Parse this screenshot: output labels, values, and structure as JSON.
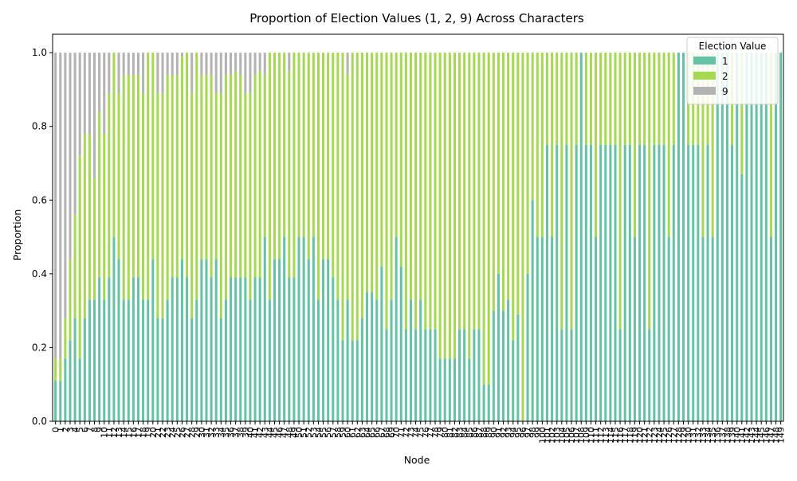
{
  "chart_data": {
    "type": "bar",
    "stacked": true,
    "title": "Proportion of Election Values (1, 2, 9) Across Characters",
    "xlabel": "Node",
    "ylabel": "Proportion",
    "ylim": [
      0,
      1.05
    ],
    "yticks": [
      "0.0",
      "0.2",
      "0.4",
      "0.6",
      "0.8",
      "1.0"
    ],
    "ytick_values": [
      0,
      0.2,
      0.4,
      0.6,
      0.8,
      1.0
    ],
    "grid": false,
    "legend": {
      "title": "Election Value",
      "placement": "top-right",
      "entries": [
        "1",
        "2",
        "9"
      ]
    },
    "colors": {
      "1": "#66c2a5",
      "2": "#a6d854",
      "9": "#b3b3b3"
    },
    "categories": [
      "0",
      "1",
      "2",
      "3",
      "4",
      "5",
      "6",
      "7",
      "8",
      "9",
      "10",
      "11",
      "12",
      "13",
      "14",
      "15",
      "16",
      "17",
      "18",
      "19",
      "20",
      "21",
      "22",
      "23",
      "24",
      "25",
      "26",
      "27",
      "28",
      "29",
      "30",
      "31",
      "32",
      "33",
      "34",
      "35",
      "36",
      "37",
      "38",
      "39",
      "40",
      "41",
      "42",
      "43",
      "44",
      "45",
      "46",
      "47",
      "48",
      "49",
      "50",
      "51",
      "52",
      "53",
      "54",
      "55",
      "56",
      "57",
      "58",
      "59",
      "60",
      "61",
      "62",
      "63",
      "64",
      "65",
      "66",
      "67",
      "68",
      "69",
      "70",
      "71",
      "72",
      "73",
      "74",
      "75",
      "76",
      "77",
      "78",
      "79",
      "80",
      "81",
      "82",
      "83",
      "84",
      "85",
      "86",
      "87",
      "88",
      "89",
      "90",
      "91",
      "92",
      "93",
      "94",
      "95",
      "96",
      "97",
      "98",
      "99",
      "100",
      "101",
      "102",
      "103",
      "104",
      "105",
      "106",
      "107",
      "108",
      "109",
      "110",
      "111",
      "112",
      "113",
      "114",
      "115",
      "116",
      "117",
      "118",
      "119",
      "120",
      "121",
      "122",
      "123",
      "124",
      "125",
      "126",
      "127",
      "128",
      "129",
      "130",
      "131",
      "132",
      "133",
      "134",
      "135",
      "136",
      "137",
      "138",
      "139",
      "140",
      "141",
      "142",
      "143",
      "144",
      "145",
      "146",
      "147",
      "148",
      "149"
    ],
    "series": [
      {
        "name": "1",
        "values": [
          0.11,
          0.11,
          0.17,
          0.22,
          0.28,
          0.17,
          0.28,
          0.33,
          0.33,
          0.39,
          0.33,
          0.39,
          0.5,
          0.44,
          0.33,
          0.33,
          0.39,
          0.39,
          0.33,
          0.33,
          0.44,
          0.28,
          0.28,
          0.33,
          0.39,
          0.39,
          0.44,
          0.39,
          0.28,
          0.33,
          0.44,
          0.44,
          0.39,
          0.44,
          0.28,
          0.33,
          0.39,
          0.39,
          0.39,
          0.39,
          0.33,
          0.39,
          0.39,
          0.5,
          0.33,
          0.44,
          0.44,
          0.5,
          0.39,
          0.39,
          0.5,
          0.5,
          0.44,
          0.5,
          0.33,
          0.44,
          0.44,
          0.39,
          0.33,
          0.22,
          0.33,
          0.22,
          0.22,
          0.28,
          0.35,
          0.35,
          0.33,
          0.42,
          0.25,
          0.33,
          0.5,
          0.42,
          0.25,
          0.33,
          0.25,
          0.33,
          0.25,
          0.25,
          0.25,
          0.17,
          0.17,
          0.17,
          0.17,
          0.25,
          0.25,
          0.17,
          0.25,
          0.25,
          0.1,
          0.1,
          0.3,
          0.4,
          0.3,
          0.33,
          0.22,
          0.29,
          0.0,
          0.4,
          0.6,
          0.5,
          0.5,
          0.75,
          0.5,
          0.75,
          0.25,
          0.75,
          0.25,
          0.75,
          1.0,
          0.75,
          0.75,
          0.5,
          0.75,
          0.75,
          0.75,
          0.75,
          0.25,
          0.75,
          0.75,
          0.5,
          0.75,
          0.75,
          0.25,
          0.75,
          0.75,
          0.75,
          0.5,
          0.75,
          1.0,
          1.0,
          0.75,
          0.75,
          0.75,
          0.5,
          0.75,
          0.5,
          1.0,
          1.0,
          1.0,
          0.75,
          1.0,
          0.67,
          1.0,
          1.0,
          1.0,
          1.0,
          1.0,
          0.5,
          1.0,
          1.0
        ]
      },
      {
        "name": "2",
        "values": [
          0.06,
          0.06,
          0.11,
          0.22,
          0.28,
          0.55,
          0.5,
          0.45,
          0.33,
          0.45,
          0.45,
          0.5,
          0.5,
          0.45,
          0.61,
          0.61,
          0.55,
          0.55,
          0.56,
          0.67,
          0.56,
          0.61,
          0.61,
          0.61,
          0.55,
          0.55,
          0.55,
          0.61,
          0.61,
          0.67,
          0.5,
          0.5,
          0.55,
          0.45,
          0.61,
          0.61,
          0.55,
          0.56,
          0.55,
          0.5,
          0.56,
          0.55,
          0.56,
          0.44,
          0.67,
          0.56,
          0.56,
          0.5,
          0.56,
          0.61,
          0.5,
          0.5,
          0.56,
          0.5,
          0.67,
          0.56,
          0.56,
          0.61,
          0.67,
          0.78,
          0.61,
          0.78,
          0.78,
          0.72,
          0.65,
          0.65,
          0.67,
          0.58,
          0.75,
          0.67,
          0.5,
          0.58,
          0.75,
          0.67,
          0.75,
          0.67,
          0.75,
          0.75,
          0.75,
          0.83,
          0.83,
          0.83,
          0.83,
          0.75,
          0.75,
          0.83,
          0.75,
          0.75,
          0.9,
          0.9,
          0.7,
          0.6,
          0.7,
          0.67,
          0.78,
          0.71,
          1.0,
          0.6,
          0.4,
          0.5,
          0.5,
          0.25,
          0.5,
          0.25,
          0.75,
          0.25,
          0.75,
          0.25,
          0.0,
          0.25,
          0.25,
          0.5,
          0.25,
          0.25,
          0.25,
          0.25,
          0.75,
          0.25,
          0.25,
          0.5,
          0.25,
          0.25,
          0.75,
          0.25,
          0.25,
          0.25,
          0.5,
          0.25,
          0.0,
          0.0,
          0.25,
          0.25,
          0.25,
          0.5,
          0.25,
          0.5,
          0.0,
          0.0,
          0.0,
          0.25,
          0.0,
          0.33,
          0.0,
          0.0,
          0.0,
          0.0,
          0.0,
          0.5,
          0.0,
          0.0
        ]
      },
      {
        "name": "9",
        "values": [
          0.83,
          0.83,
          0.72,
          0.56,
          0.44,
          0.28,
          0.22,
          0.22,
          0.34,
          0.16,
          0.22,
          0.11,
          0.0,
          0.11,
          0.06,
          0.06,
          0.06,
          0.06,
          0.11,
          0.0,
          0.0,
          0.11,
          0.11,
          0.06,
          0.06,
          0.06,
          0.01,
          0.0,
          0.11,
          0.0,
          0.06,
          0.06,
          0.06,
          0.11,
          0.11,
          0.06,
          0.06,
          0.05,
          0.06,
          0.11,
          0.11,
          0.06,
          0.05,
          0.06,
          0.0,
          0.0,
          0.0,
          0.0,
          0.05,
          0.0,
          0.0,
          0.0,
          0.0,
          0.0,
          0.0,
          0.0,
          0.0,
          0.0,
          0.0,
          0.0,
          0.06,
          0.0,
          0.0,
          0.0,
          0.0,
          0.0,
          0.0,
          0.0,
          0.0,
          0.0,
          0.0,
          0.0,
          0.0,
          0.0,
          0.0,
          0.0,
          0.0,
          0.0,
          0.0,
          0.0,
          0.0,
          0.0,
          0.0,
          0.0,
          0.0,
          0.0,
          0.0,
          0.0,
          0.0,
          0.0,
          0.0,
          0.0,
          0.0,
          0.0,
          0.0,
          0.0,
          0.0,
          0.0,
          0.0,
          0.0,
          0.0,
          0.0,
          0.0,
          0.0,
          0.0,
          0.0,
          0.0,
          0.0,
          0.0,
          0.0,
          0.0,
          0.0,
          0.0,
          0.0,
          0.0,
          0.0,
          0.0,
          0.0,
          0.0,
          0.0,
          0.0,
          0.0,
          0.0,
          0.0,
          0.0,
          0.0,
          0.0,
          0.0,
          0.0,
          0.0,
          0.0,
          0.0,
          0.0,
          0.0,
          0.0,
          0.0,
          0.0,
          0.0,
          0.0,
          0.0,
          0.0,
          0.0,
          0.0,
          0.0,
          0.0,
          0.0,
          0.0,
          0.0,
          0.0,
          0.0
        ]
      }
    ]
  }
}
